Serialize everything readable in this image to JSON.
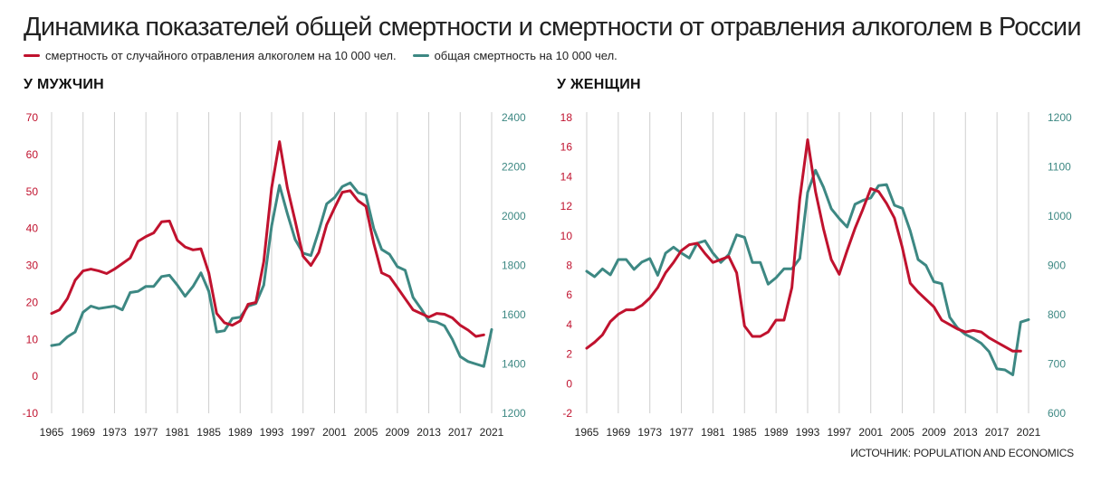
{
  "title": "Динамика показателей общей смертности и смертности от отравления алкоголем в России",
  "legend": [
    {
      "label": "смертность от случайного отравления алкоголем на 10 000 чел.",
      "color": "#c0122e"
    },
    {
      "label": "общая смертность на 10 000 чел.",
      "color": "#3d8883"
    }
  ],
  "source": "ИСТОЧНИК: POPULATION AND ECONOMICS",
  "chart_data": [
    {
      "type": "line",
      "title": "У МУЖЧИН",
      "x_ticks": [
        1965,
        1969,
        1973,
        1977,
        1981,
        1985,
        1989,
        1993,
        1997,
        2001,
        2005,
        2009,
        2013,
        2017,
        2021
      ],
      "xlim": [
        1965,
        2021
      ],
      "y_left": {
        "ticks": [
          -10,
          0,
          10,
          20,
          30,
          40,
          50,
          60,
          70
        ],
        "lim": [
          -10,
          70
        ],
        "color": "#c0122e"
      },
      "y_right": {
        "ticks": [
          1200,
          1400,
          1600,
          1800,
          2000,
          2200,
          2400
        ],
        "lim": [
          1200,
          2400
        ],
        "color": "#3d8883"
      },
      "grid": "vertical",
      "series": [
        {
          "name": "смертность от случайного отравления алкоголем на 10 000 чел.",
          "axis": "left",
          "color": "#c0122e",
          "x": [
            1965,
            1966,
            1967,
            1968,
            1969,
            1970,
            1971,
            1972,
            1973,
            1974,
            1975,
            1976,
            1977,
            1978,
            1979,
            1980,
            1981,
            1982,
            1983,
            1984,
            1985,
            1986,
            1987,
            1988,
            1989,
            1990,
            1991,
            1992,
            1993,
            1994,
            1995,
            1996,
            1997,
            1998,
            1999,
            2000,
            2001,
            2002,
            2003,
            2004,
            2005,
            2006,
            2007,
            2008,
            2009,
            2010,
            2011,
            2012,
            2013,
            2014,
            2015,
            2016,
            2017,
            2018,
            2019,
            2020
          ],
          "y": [
            17,
            18,
            21,
            26,
            28.5,
            29,
            28.5,
            27.8,
            29,
            30.5,
            32,
            36.5,
            37.8,
            38.8,
            41.8,
            42,
            36.8,
            35,
            34.2,
            34.5,
            28,
            17,
            14.5,
            13.8,
            15,
            19.5,
            20,
            31,
            51,
            63.5,
            51,
            42,
            32.5,
            30,
            33.5,
            41,
            45.5,
            49.8,
            50.2,
            47.5,
            46,
            36,
            28,
            27,
            24,
            21,
            18,
            17,
            16,
            17,
            16.8,
            15.8,
            13.8,
            12.5,
            10.8,
            11.2
          ]
        },
        {
          "name": "общая смертность на 10 000 чел.",
          "axis": "right",
          "color": "#3d8883",
          "x": [
            1965,
            1966,
            1967,
            1968,
            1969,
            1970,
            1971,
            1972,
            1973,
            1974,
            1975,
            1976,
            1977,
            1978,
            1979,
            1980,
            1981,
            1982,
            1983,
            1984,
            1985,
            1986,
            1987,
            1988,
            1989,
            1990,
            1991,
            1992,
            1993,
            1994,
            1995,
            1996,
            1997,
            1998,
            1999,
            2000,
            2001,
            2002,
            2003,
            2004,
            2005,
            2006,
            2007,
            2008,
            2009,
            2010,
            2011,
            2012,
            2013,
            2014,
            2015,
            2016,
            2017,
            2018,
            2019,
            2020,
            2021
          ],
          "y": [
            1475,
            1480,
            1510,
            1530,
            1610,
            1635,
            1625,
            1630,
            1635,
            1620,
            1690,
            1695,
            1715,
            1715,
            1755,
            1760,
            1720,
            1675,
            1715,
            1770,
            1695,
            1530,
            1535,
            1585,
            1590,
            1635,
            1645,
            1720,
            1960,
            2125,
            2010,
            1905,
            1850,
            1840,
            1940,
            2050,
            2075,
            2120,
            2135,
            2095,
            2085,
            1950,
            1865,
            1845,
            1795,
            1780,
            1670,
            1625,
            1575,
            1570,
            1555,
            1500,
            1430,
            1410,
            1400,
            1390,
            1540
          ]
        }
      ]
    },
    {
      "type": "line",
      "title": "У ЖЕНЩИН",
      "x_ticks": [
        1965,
        1969,
        1973,
        1977,
        1981,
        1985,
        1989,
        1993,
        1997,
        2001,
        2005,
        2009,
        2013,
        2017,
        2021
      ],
      "xlim": [
        1965,
        2021
      ],
      "y_left": {
        "ticks": [
          -2,
          0,
          2,
          4,
          6,
          8,
          10,
          12,
          14,
          16,
          18
        ],
        "lim": [
          -2,
          18
        ],
        "color": "#c0122e"
      },
      "y_right": {
        "ticks": [
          600,
          700,
          800,
          900,
          1000,
          1100,
          1200
        ],
        "lim": [
          600,
          1200
        ],
        "color": "#3d8883"
      },
      "grid": "vertical",
      "series": [
        {
          "name": "смертность от случайного отравления алкоголем на 10 000 чел.",
          "axis": "left",
          "color": "#c0122e",
          "x": [
            1965,
            1966,
            1967,
            1968,
            1969,
            1970,
            1971,
            1972,
            1973,
            1974,
            1975,
            1976,
            1977,
            1978,
            1979,
            1980,
            1981,
            1982,
            1983,
            1984,
            1985,
            1986,
            1987,
            1988,
            1989,
            1990,
            1991,
            1992,
            1993,
            1994,
            1995,
            1996,
            1997,
            1998,
            1999,
            2000,
            2001,
            2002,
            2003,
            2004,
            2005,
            2006,
            2007,
            2008,
            2009,
            2010,
            2011,
            2012,
            2013,
            2014,
            2015,
            2016,
            2017,
            2018,
            2019,
            2020
          ],
          "y": [
            2.4,
            2.8,
            3.3,
            4.2,
            4.7,
            5,
            5,
            5.3,
            5.8,
            6.5,
            7.5,
            8.2,
            9,
            9.4,
            9.5,
            8.8,
            8.2,
            8.4,
            8.6,
            7.5,
            3.9,
            3.2,
            3.2,
            3.5,
            4.3,
            4.3,
            6.5,
            12.5,
            16.5,
            13,
            10.5,
            8.4,
            7.4,
            9,
            10.5,
            11.8,
            13.2,
            13,
            12.2,
            11.2,
            9.2,
            6.8,
            6.2,
            5.7,
            5.2,
            4.3,
            4,
            3.7,
            3.5,
            3.6,
            3.5,
            3.1,
            2.8,
            2.5,
            2.2,
            2.2
          ]
        },
        {
          "name": "общая смертность на 10 000 чел.",
          "axis": "right",
          "color": "#3d8883",
          "x": [
            1965,
            1966,
            1967,
            1968,
            1969,
            1970,
            1971,
            1972,
            1973,
            1974,
            1975,
            1976,
            1977,
            1978,
            1979,
            1980,
            1981,
            1982,
            1983,
            1984,
            1985,
            1986,
            1987,
            1988,
            1989,
            1990,
            1991,
            1992,
            1993,
            1994,
            1995,
            1996,
            1997,
            1998,
            1999,
            2000,
            2001,
            2002,
            2003,
            2004,
            2005,
            2006,
            2007,
            2008,
            2009,
            2010,
            2011,
            2012,
            2013,
            2014,
            2015,
            2016,
            2017,
            2018,
            2019,
            2020,
            2021
          ],
          "y": [
            888,
            877,
            893,
            881,
            912,
            912,
            892,
            907,
            914,
            880,
            925,
            937,
            925,
            915,
            945,
            950,
            925,
            906,
            922,
            962,
            957,
            906,
            906,
            862,
            875,
            893,
            893,
            914,
            1048,
            1093,
            1059,
            1015,
            995,
            978,
            1024,
            1032,
            1037,
            1062,
            1064,
            1022,
            1016,
            970,
            912,
            900,
            867,
            863,
            795,
            773,
            760,
            752,
            742,
            725,
            690,
            688,
            678,
            785,
            790
          ]
        }
      ]
    }
  ]
}
